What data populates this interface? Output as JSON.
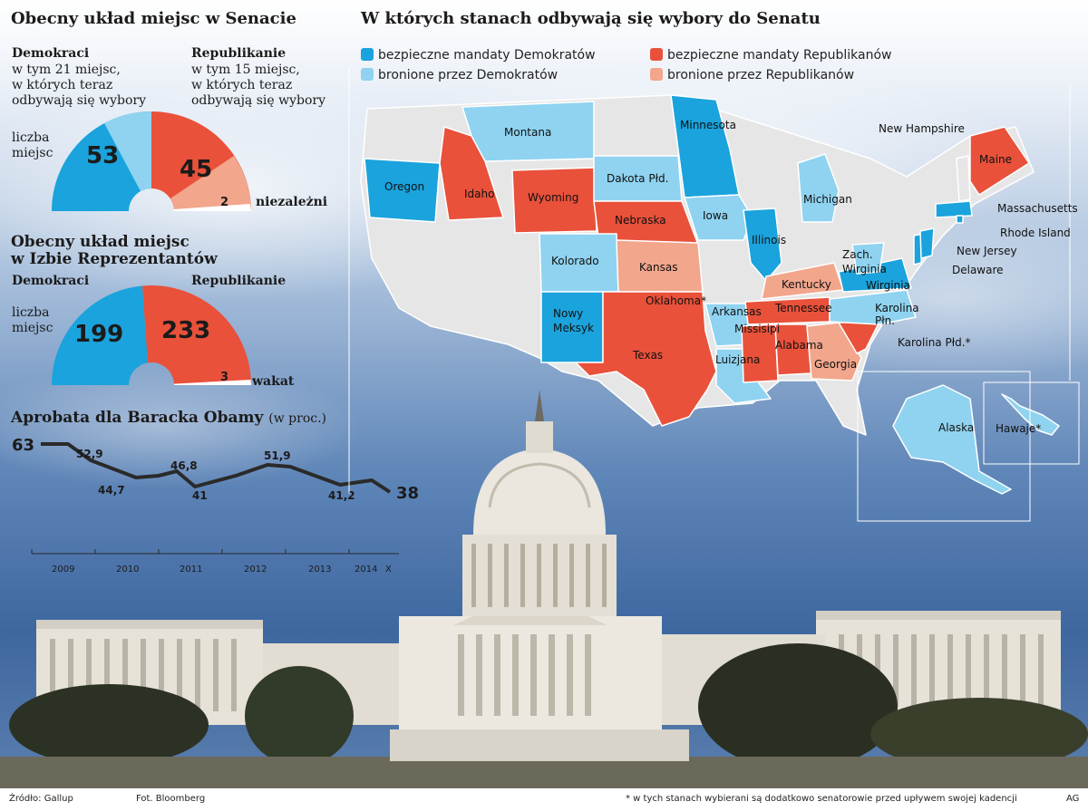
{
  "senate": {
    "title": "Obecny układ miejsc w Senacie",
    "dem_label": "Demokraci",
    "dem_sub1": "w tym 21 miejsc,",
    "dem_sub2": "w których teraz",
    "dem_sub3": "odbywają się wybory",
    "rep_label": "Republikanie",
    "rep_sub1": "w tym 15 miejsc,",
    "rep_sub2": "w których teraz",
    "rep_sub3": "odbywają się wybory",
    "seats_label1": "liczba",
    "seats_label2": "miejsc",
    "dem_seats": "53",
    "rep_seats": "45",
    "ind_seats": "2",
    "ind_label": "niezależni"
  },
  "house": {
    "title1": "Obecny układ miejsc",
    "title2": "w Izbie Reprezentantów",
    "dem_label": "Demokraci",
    "rep_label": "Republikanie",
    "seats_label1": "liczba",
    "seats_label2": "miejsc",
    "dem_seats": "199",
    "rep_seats": "233",
    "vacant_seats": "3",
    "vacant_label": "wakat"
  },
  "approval": {
    "title": "Aprobata dla Baracka Obamy",
    "unit": "(w proc.)",
    "values": [
      "63",
      "52,9",
      "44,7",
      "46,8",
      "41",
      "51,9",
      "41,2",
      "38"
    ],
    "years": [
      "2009",
      "2010",
      "2011",
      "2012",
      "2013",
      "2014",
      "X"
    ]
  },
  "map": {
    "title": "W których stanach odbywają się wybory do Senatu",
    "legend": {
      "safe_dem": "bezpieczne mandaty Demokratów",
      "safe_rep": "bezpieczne mandaty Republikanów",
      "def_dem": "bronione przez Demokratów",
      "def_rep": "bronione przez Republikanów"
    },
    "colors": {
      "safe_dem": "#1aa3dc",
      "safe_rep": "#e9513a",
      "def_dem": "#8fd3f0",
      "def_rep": "#f2a68c",
      "none": "#e6e6e6"
    },
    "states": {
      "montana": "Montana",
      "minnesota": "Minnesota",
      "new_hampshire": "New Hampshire",
      "maine": "Maine",
      "oregon": "Oregon",
      "idaho": "Idaho",
      "wyoming": "Wyoming",
      "dakota": "Dakota Płd.",
      "michigan": "Michigan",
      "massachusetts": "Massachusetts",
      "iowa": "Iowa",
      "rhode_island": "Rhode Island",
      "nebraska": "Nebraska",
      "illinois": "Illinois",
      "new_jersey": "New Jersey",
      "kolorado": "Kolorado",
      "kansas": "Kansas",
      "zach1": "Zach.",
      "zach2": "Wirginia",
      "delaware": "Delaware",
      "kentucky": "Kentucky",
      "wirginia": "Wirginia",
      "oklahoma": "Oklahoma*",
      "nowy1": "Nowy",
      "nowy2": "Meksyk",
      "arkansas": "Arkansas",
      "tennessee": "Tennessee",
      "karolina1": "Karolina",
      "karolina2": "Płn.",
      "missisipi": "Missisipi",
      "alabama": "Alabama",
      "karolina_s": "Karolina Płd.*",
      "texas": "Texas",
      "luizjana": "Luizjana",
      "georgia": "Georgia",
      "alaska": "Alaska",
      "hawaje": "Hawaje*"
    }
  },
  "footer": {
    "source": "Źródło: Gallup",
    "photo": "Fot. Bloomberg",
    "note": "* w tych stanach wybierani są dodatkowo senatorowie przed upływem swojej kadencji",
    "ag": "AG"
  }
}
